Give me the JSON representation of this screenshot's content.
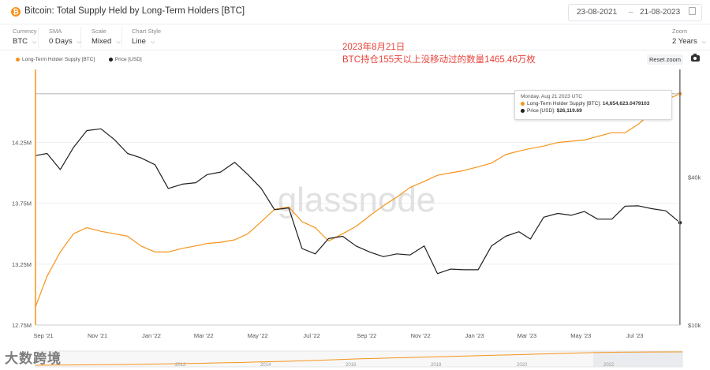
{
  "header": {
    "logo_glyph": "₿",
    "title": "Bitcoin: Total Supply Held by Long-Term Holders [BTC]",
    "date_from": "23-08-2021",
    "date_sep": "–",
    "date_to": "21-08-2023",
    "calendar_icon": "calendar-icon"
  },
  "controls": {
    "currency": {
      "label": "Currency",
      "value": "BTC"
    },
    "sma": {
      "label": "SMA",
      "value": "0 Days"
    },
    "scale": {
      "label": "Scale",
      "value": "Mixed"
    },
    "chart_style": {
      "label": "Chart Style",
      "value": "Line"
    },
    "zoom": {
      "label": "Zoom",
      "value": "2 Years"
    }
  },
  "legend": {
    "lth_label": "Long-Term Holder Supply [BTC]",
    "price_label": "Price [USD]"
  },
  "toolbar": {
    "reset_zoom": "Reset zoom",
    "camera_icon": "camera-icon"
  },
  "annotation": {
    "line1": "2023年8月21日",
    "line2": "BTC持仓155天以上没移动过的数量1465.46万枚"
  },
  "tooltip": {
    "date": "Monday, Aug 21 2023 UTC",
    "lth_label": "Long-Term Holder Supply [BTC]:",
    "lth_value": "14,654,623.0479103",
    "price_label": "Price [USD]:",
    "price_value": "$26,119.69"
  },
  "watermark": {
    "text": "glassnode",
    "bottom_text": "大数跨境"
  },
  "colors": {
    "lth": "#f7931a",
    "price": "#1f1f1f",
    "accent_red": "#e8453c"
  },
  "chart_data": {
    "type": "line",
    "y_left": {
      "ticks": [
        "12.75M",
        "13.25M",
        "13.75M",
        "14.25M"
      ],
      "range": [
        12.75,
        14.85
      ],
      "unit": "M BTC"
    },
    "y_right": {
      "ticks": [
        "$10k",
        "$40k"
      ],
      "scale": "log"
    },
    "x_ticks": [
      "Sep '21",
      "Nov '21",
      "Jan '22",
      "Mar '22",
      "May '22",
      "Jul '22",
      "Sep '22",
      "Nov '22",
      "Jan '23",
      "Mar '23",
      "May '23",
      "Jul '23"
    ],
    "navigator_ticks": [
      "2012",
      "2014",
      "2016",
      "2018",
      "2020",
      "2022"
    ],
    "series": [
      {
        "name": "Long-Term Holder Supply [BTC]",
        "axis": "left",
        "x": [
          "2021-08-23",
          "2021-09-05",
          "2021-09-20",
          "2021-10-05",
          "2021-10-20",
          "2021-11-05",
          "2021-11-20",
          "2021-12-05",
          "2021-12-20",
          "2022-01-05",
          "2022-01-20",
          "2022-02-05",
          "2022-02-20",
          "2022-03-05",
          "2022-03-20",
          "2022-04-05",
          "2022-04-20",
          "2022-05-05",
          "2022-05-20",
          "2022-06-05",
          "2022-06-20",
          "2022-07-05",
          "2022-07-20",
          "2022-08-05",
          "2022-08-20",
          "2022-09-05",
          "2022-09-20",
          "2022-10-05",
          "2022-10-20",
          "2022-11-05",
          "2022-11-20",
          "2022-12-05",
          "2022-12-20",
          "2023-01-05",
          "2023-01-20",
          "2023-02-05",
          "2023-02-20",
          "2023-03-05",
          "2023-03-20",
          "2023-04-05",
          "2023-04-20",
          "2023-05-05",
          "2023-05-20",
          "2023-06-05",
          "2023-06-20",
          "2023-07-05",
          "2023-07-20",
          "2023-08-05",
          "2023-08-21"
        ],
        "values": [
          12.9,
          13.15,
          13.35,
          13.5,
          13.55,
          13.52,
          13.5,
          13.48,
          13.4,
          13.35,
          13.35,
          13.38,
          13.4,
          13.42,
          13.43,
          13.45,
          13.5,
          13.6,
          13.7,
          13.72,
          13.6,
          13.55,
          13.44,
          13.5,
          13.56,
          13.65,
          13.73,
          13.8,
          13.88,
          13.93,
          13.98,
          14.0,
          14.02,
          14.05,
          14.08,
          14.15,
          14.18,
          14.2,
          14.22,
          14.25,
          14.26,
          14.27,
          14.3,
          14.33,
          14.33,
          14.4,
          14.5,
          14.6,
          14.65
        ]
      },
      {
        "name": "Price [USD]",
        "axis": "right",
        "x": [
          "2021-08-23",
          "2021-09-05",
          "2021-09-20",
          "2021-10-05",
          "2021-10-20",
          "2021-11-05",
          "2021-11-20",
          "2021-12-05",
          "2021-12-20",
          "2022-01-05",
          "2022-01-20",
          "2022-02-05",
          "2022-02-20",
          "2022-03-05",
          "2022-03-20",
          "2022-04-05",
          "2022-04-20",
          "2022-05-05",
          "2022-05-20",
          "2022-06-05",
          "2022-06-20",
          "2022-07-05",
          "2022-07-20",
          "2022-08-05",
          "2022-08-20",
          "2022-09-05",
          "2022-09-20",
          "2022-10-05",
          "2022-10-20",
          "2022-11-05",
          "2022-11-20",
          "2022-12-05",
          "2022-12-20",
          "2023-01-05",
          "2023-01-20",
          "2023-02-05",
          "2023-02-20",
          "2023-03-05",
          "2023-03-20",
          "2023-04-05",
          "2023-04-20",
          "2023-05-05",
          "2023-05-20",
          "2023-06-05",
          "2023-06-20",
          "2023-07-05",
          "2023-07-20",
          "2023-08-05",
          "2023-08-21"
        ],
        "values": [
          49000,
          50000,
          43000,
          53000,
          62000,
          63000,
          57000,
          50000,
          48000,
          45000,
          36000,
          37500,
          38000,
          41000,
          42000,
          46000,
          41000,
          36000,
          29500,
          30000,
          20500,
          19500,
          22500,
          23000,
          21000,
          19800,
          19000,
          19500,
          19300,
          21000,
          16200,
          16900,
          16800,
          16800,
          21000,
          23000,
          24000,
          22400,
          27500,
          28500,
          28000,
          29000,
          27000,
          27000,
          30500,
          30600,
          29800,
          29200,
          26120
        ]
      }
    ]
  }
}
